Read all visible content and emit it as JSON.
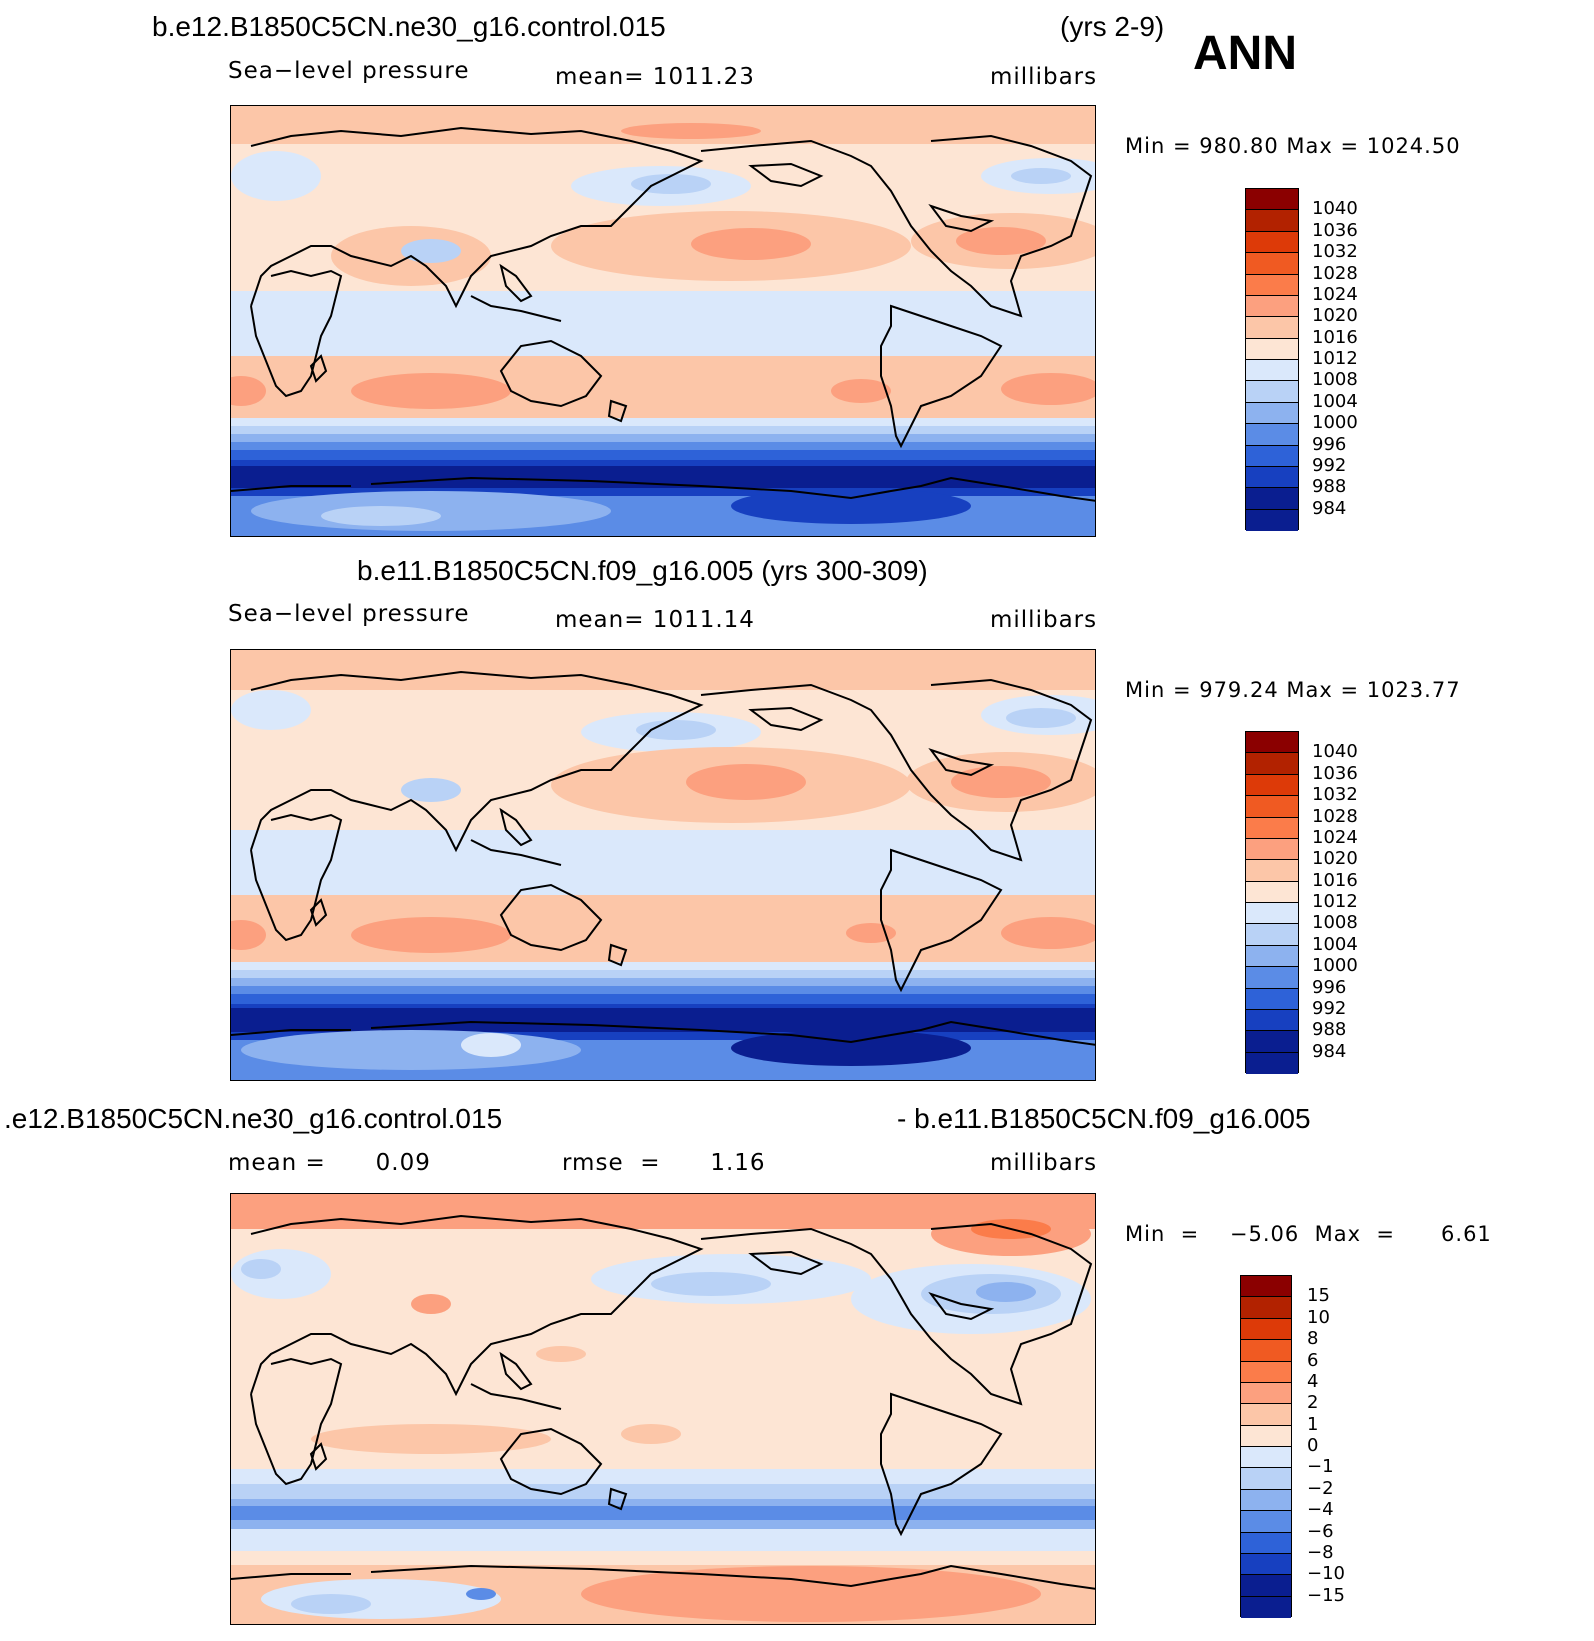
{
  "season": "ANN",
  "panels": [
    {
      "header_left": "b.e12.B1850C5CN.ne30_g16.control.015",
      "header_right": "(yrs 2-9)",
      "sub_left": "Sea−level pressure",
      "sub_mid": "mean=  1011.23",
      "sub_right": "millibars",
      "minmax": "Min  =  980.80  Max  =  1024.50",
      "colorbar": [
        "1040",
        "1036",
        "1032",
        "1028",
        "1024",
        "1020",
        "1016",
        "1012",
        "1008",
        "1004",
        "1000",
        "996",
        "992",
        "988",
        "984"
      ]
    },
    {
      "header_center": "b.e11.B1850C5CN.f09_g16.005 (yrs 300-309)",
      "sub_left": "Sea−level pressure",
      "sub_mid": "mean=  1011.14",
      "sub_right": "millibars",
      "minmax": "Min  =  979.24  Max  =  1023.77",
      "colorbar": [
        "1040",
        "1036",
        "1032",
        "1028",
        "1024",
        "1020",
        "1016",
        "1012",
        "1008",
        "1004",
        "1000",
        "996",
        "992",
        "988",
        "984"
      ]
    },
    {
      "header_left": ".e12.B1850C5CN.ne30_g16.control.015",
      "header_right": "- b.e11.B1850C5CN.f09_g16.005",
      "sub_left": "mean =      0.09",
      "sub_mid": "rmse  =      1.16",
      "sub_right": "millibars",
      "minmax": "Min  =    −5.06  Max  =      6.61",
      "colorbar": [
        "15",
        "10",
        "8",
        "6",
        "4",
        "2",
        "1",
        "0",
        "−1",
        "−2",
        "−4",
        "−6",
        "−8",
        "−10",
        "−15"
      ]
    }
  ],
  "palette": [
    "#8b0000",
    "#b22200",
    "#dd3a08",
    "#f05a22",
    "#fb7c4a",
    "#fca07f",
    "#fcc6a8",
    "#fde5d4",
    "#dae8fb",
    "#b9d2f6",
    "#8db2ef",
    "#5b8ce6",
    "#2e62d8",
    "#1740c0",
    "#0a1e90"
  ]
}
